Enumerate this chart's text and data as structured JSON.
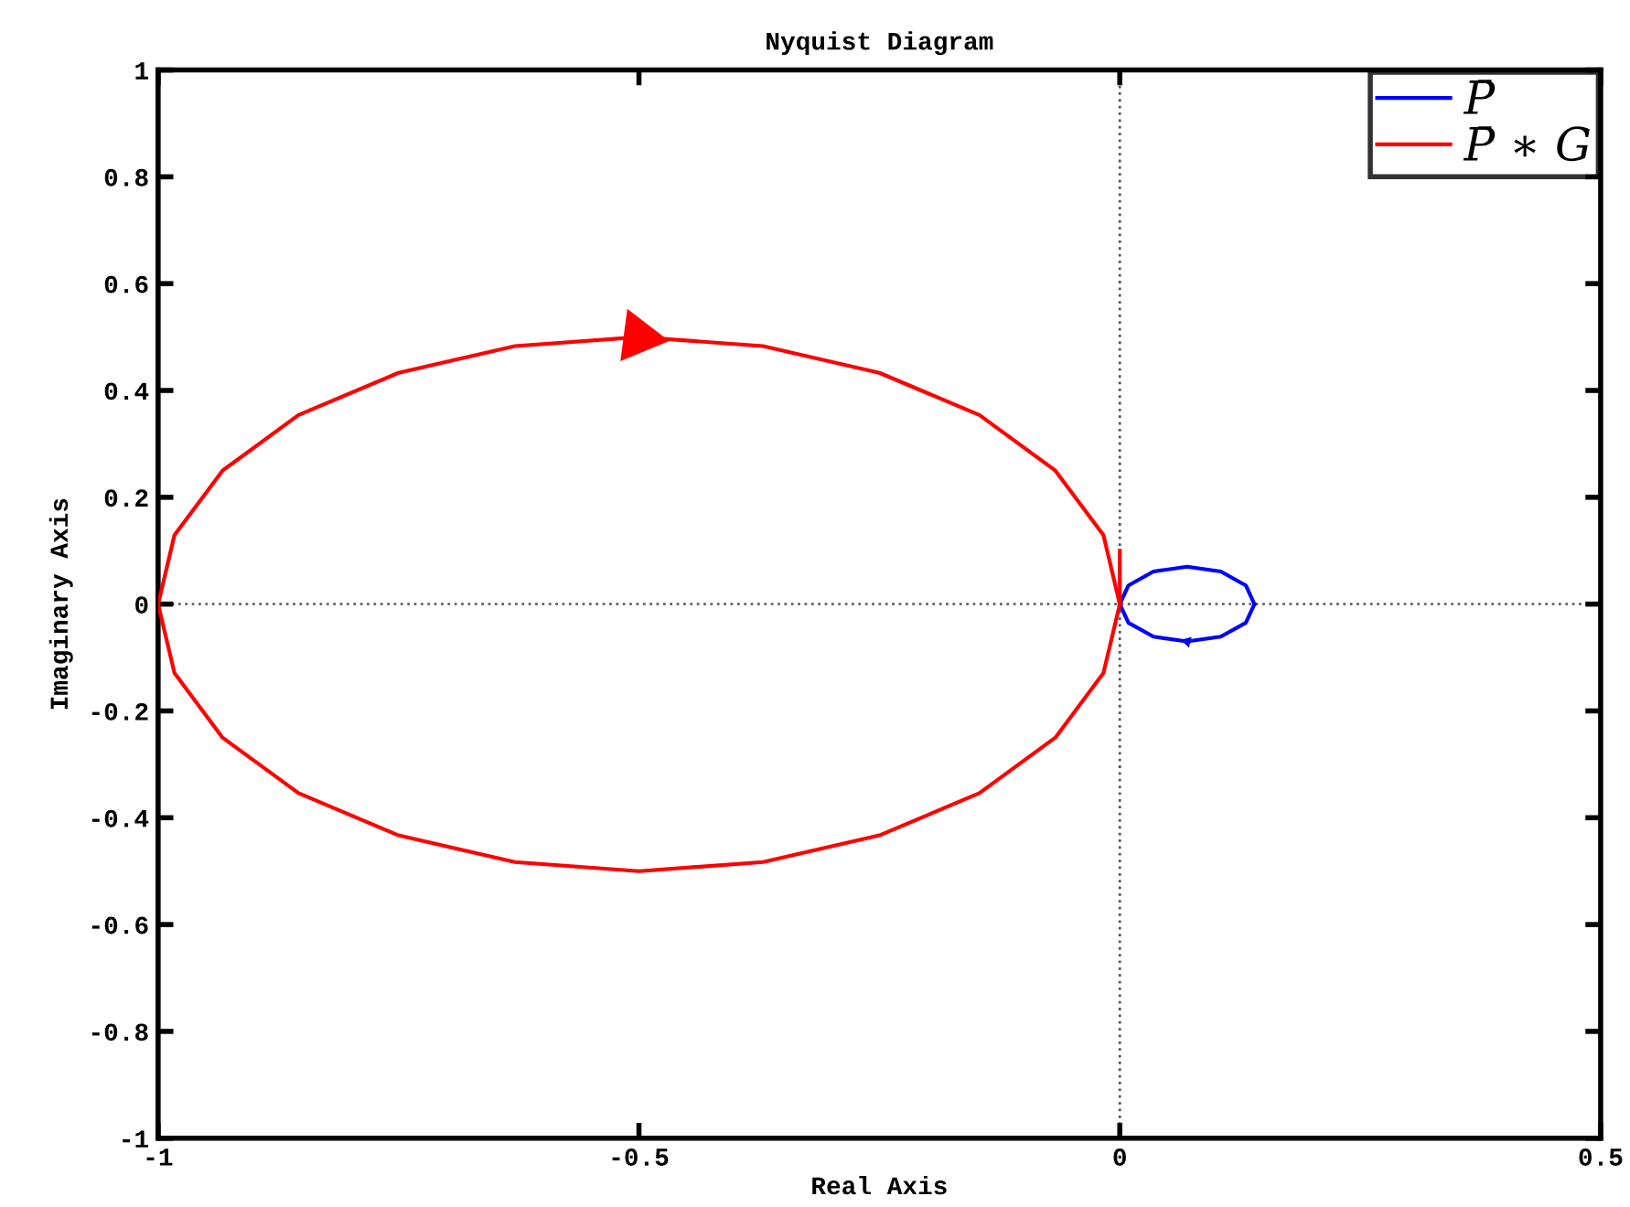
{
  "chart_data": {
    "type": "line",
    "title": "Nyquist Diagram",
    "xlabel": "Real Axis",
    "ylabel": "Imaginary Axis",
    "xlim": [
      -1,
      0.5
    ],
    "xticks": [
      -1,
      -0.5,
      0,
      0.5
    ],
    "ylim": [
      -1,
      1
    ],
    "yticks": [
      -1,
      -0.8,
      -0.6,
      -0.4,
      -0.2,
      0,
      0.2,
      0.4,
      0.6,
      0.8,
      1
    ],
    "grid": false,
    "legend": "top right",
    "line_style": "solid",
    "marker": "none",
    "ref_lines": [
      {
        "axis": "x",
        "value": 0,
        "color": "#555555",
        "line_style": "dotted"
      },
      {
        "axis": "y",
        "value": 0,
        "color": "#666666",
        "line_style": "dotted"
      }
    ],
    "series": [
      {
        "name": "P̄",
        "color": "#0000ff",
        "x": [
          0.14,
          0.131,
          0.105,
          0.07,
          0.035,
          0.009,
          0
        ],
        "values": [
          0,
          -0.035,
          -0.061,
          -0.07,
          -0.061,
          -0.035,
          0
        ]
      },
      {
        "color": "#0000ff",
        "x": [
          0,
          0.009,
          0.035,
          0.07,
          0.105,
          0.131,
          0.14
        ],
        "values": [
          0,
          0.035,
          0.061,
          0.07,
          0.061,
          0.035,
          0
        ]
      },
      {
        "name": "P̄ ∗ G",
        "color": "#ff0000",
        "x": [
          -1,
          -0.983,
          -0.933,
          -0.854,
          -0.75,
          -0.629,
          -0.5,
          -0.371,
          -0.25,
          -0.146,
          -0.067,
          -0.017,
          0
        ],
        "values": [
          0,
          0.129,
          0.25,
          0.354,
          0.433,
          0.483,
          0.5,
          0.483,
          0.433,
          0.354,
          0.25,
          0.129,
          0
        ]
      },
      {
        "color": "#ff0000",
        "x": [
          0,
          0,
          -0.017,
          -0.067,
          -0.146,
          -0.25,
          -0.371,
          -0.5,
          -0.629,
          -0.75,
          -0.854,
          -0.933,
          -0.983,
          -1
        ],
        "values": [
          0.1,
          0,
          -0.129,
          -0.25,
          -0.354,
          -0.433,
          -0.483,
          -0.5,
          -0.483,
          -0.433,
          -0.354,
          -0.25,
          -0.129,
          0
        ]
      }
    ]
  }
}
